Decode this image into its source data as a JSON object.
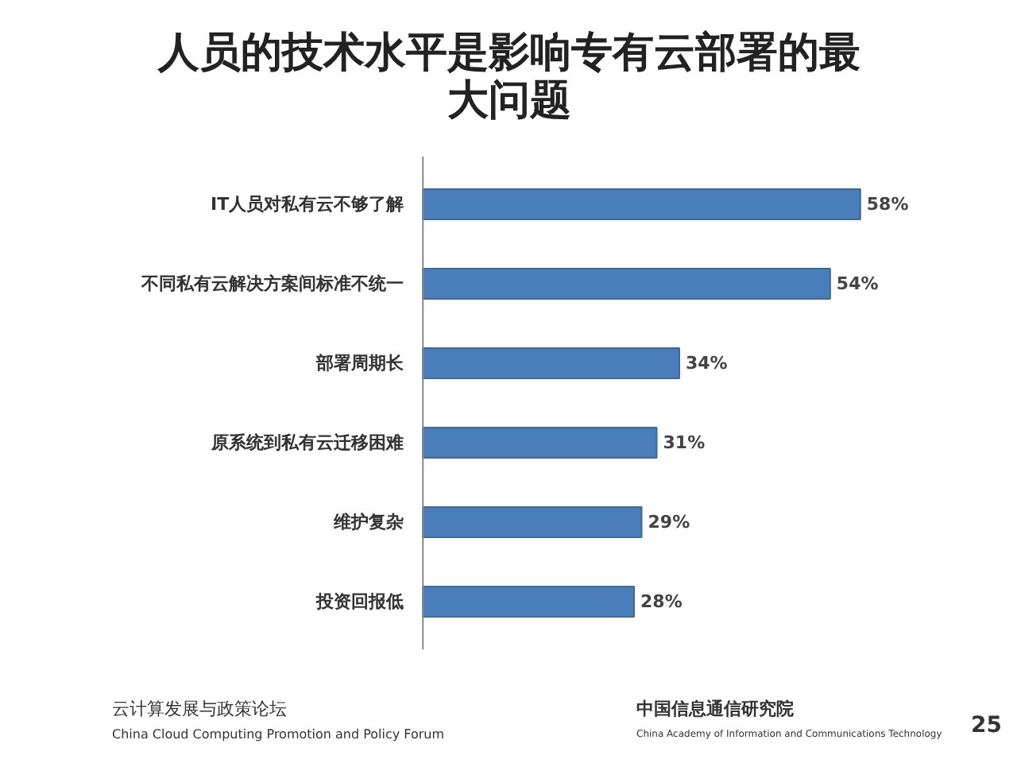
{
  "chart_data": {
    "type": "bar",
    "orientation": "horizontal",
    "title": "人员的技术水平是影响专有云部署的最大问题",
    "categories": [
      "IT人员对私有云不够了解",
      "不同私有云解决方案间标准不统一",
      "部署周期长",
      "原系统到私有云迁移困难",
      "维护复杂",
      "投资回报低"
    ],
    "values": [
      58,
      54,
      34,
      31,
      29,
      28
    ],
    "value_labels": [
      "58%",
      "54%",
      "34%",
      "31%",
      "29%",
      "28%"
    ],
    "color": "#4a7ebb",
    "annotations": [
      "云计算发展与政策论坛",
      "China Cloud Computing Promotion and Policy Forum",
      "中国信息通信研究院",
      "China Academy of Information and Communications Technology",
      "25"
    ]
  }
}
